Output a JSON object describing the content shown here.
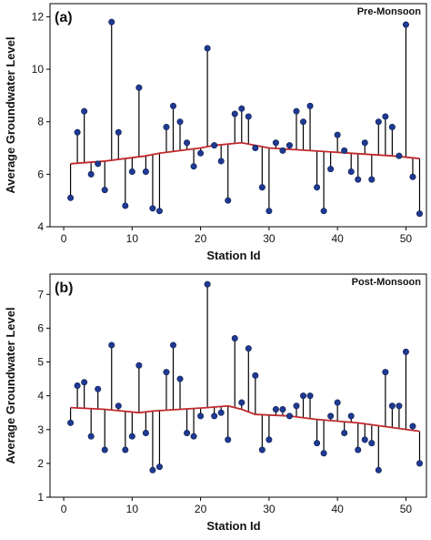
{
  "chart_data": [
    {
      "type": "scatter",
      "panel_label": "(a)",
      "season": "Pre-Monsoon",
      "xlabel": "Station Id",
      "ylabel": "Average Groundwater Level",
      "xlim": [
        -2,
        53
      ],
      "ylim": [
        4,
        12.5
      ],
      "xticks": [
        0,
        10,
        20,
        30,
        40,
        50
      ],
      "yticks": [
        4,
        6,
        8,
        10,
        12
      ],
      "grid": false,
      "colors": {
        "points": "#1f3a93",
        "fit": "#c0282d",
        "stems": "#000000"
      },
      "x": [
        1,
        2,
        3,
        4,
        5,
        6,
        7,
        8,
        9,
        10,
        11,
        12,
        13,
        14,
        15,
        16,
        17,
        18,
        19,
        20,
        21,
        22,
        23,
        24,
        25,
        26,
        27,
        28,
        29,
        30,
        31,
        32,
        33,
        34,
        35,
        36,
        37,
        38,
        39,
        40,
        41,
        42,
        43,
        44,
        45,
        46,
        47,
        48,
        49,
        50,
        51,
        52
      ],
      "observed": [
        5.1,
        7.6,
        8.4,
        6.0,
        6.4,
        5.4,
        11.8,
        7.6,
        4.8,
        6.1,
        9.3,
        6.1,
        4.7,
        4.6,
        7.8,
        8.6,
        8.0,
        7.2,
        6.3,
        6.8,
        10.8,
        7.1,
        6.5,
        5.0,
        8.3,
        8.5,
        8.2,
        7.0,
        5.5,
        4.6,
        7.2,
        6.9,
        7.1,
        8.4,
        8.0,
        8.6,
        5.5,
        4.6,
        6.2,
        7.5,
        6.9,
        6.1,
        5.8,
        7.2,
        5.8,
        8.0,
        8.2,
        7.8,
        6.7,
        11.7,
        5.9,
        4.5
      ],
      "fitted_line": {
        "x": [
          1,
          6,
          12,
          14,
          20,
          22,
          26,
          30,
          36,
          42,
          48,
          52
        ],
        "y": [
          6.4,
          6.5,
          6.7,
          6.8,
          7.0,
          7.1,
          7.2,
          7.0,
          6.9,
          6.8,
          6.7,
          6.6
        ]
      }
    },
    {
      "type": "scatter",
      "panel_label": "(b)",
      "season": "Post-Monsoon",
      "xlabel": "Station Id",
      "ylabel": "Average Groundwater Level",
      "xlim": [
        -2,
        53
      ],
      "ylim": [
        1,
        7.6
      ],
      "xticks": [
        0,
        10,
        20,
        30,
        40,
        50
      ],
      "yticks": [
        1,
        2,
        3,
        4,
        5,
        6,
        7
      ],
      "grid": false,
      "colors": {
        "points": "#1f3a93",
        "fit": "#c0282d",
        "stems": "#000000"
      },
      "x": [
        1,
        2,
        3,
        4,
        5,
        6,
        7,
        8,
        9,
        10,
        11,
        12,
        13,
        14,
        15,
        16,
        17,
        18,
        19,
        20,
        21,
        22,
        23,
        24,
        25,
        26,
        27,
        28,
        29,
        30,
        31,
        32,
        33,
        34,
        35,
        36,
        37,
        38,
        39,
        40,
        41,
        42,
        43,
        44,
        45,
        46,
        47,
        48,
        49,
        50,
        51,
        52
      ],
      "observed": [
        3.2,
        4.3,
        4.4,
        2.8,
        4.2,
        2.4,
        5.5,
        3.7,
        2.4,
        2.8,
        4.9,
        2.9,
        1.8,
        1.9,
        4.7,
        5.5,
        4.5,
        2.9,
        2.8,
        3.4,
        7.3,
        3.4,
        3.5,
        2.7,
        5.7,
        3.8,
        5.4,
        4.6,
        2.4,
        2.7,
        3.6,
        3.6,
        3.4,
        3.7,
        4.0,
        4.0,
        2.6,
        2.3,
        3.4,
        3.8,
        2.9,
        3.4,
        2.4,
        2.7,
        2.6,
        1.8,
        4.7,
        3.7,
        3.7,
        5.3,
        3.1,
        2.0
      ],
      "fitted_line": {
        "x": [
          1,
          6,
          11,
          13,
          21,
          24,
          26,
          28,
          33,
          37,
          43,
          52
        ],
        "y": [
          3.65,
          3.6,
          3.5,
          3.55,
          3.65,
          3.7,
          3.6,
          3.45,
          3.4,
          3.3,
          3.2,
          2.95
        ]
      }
    }
  ]
}
